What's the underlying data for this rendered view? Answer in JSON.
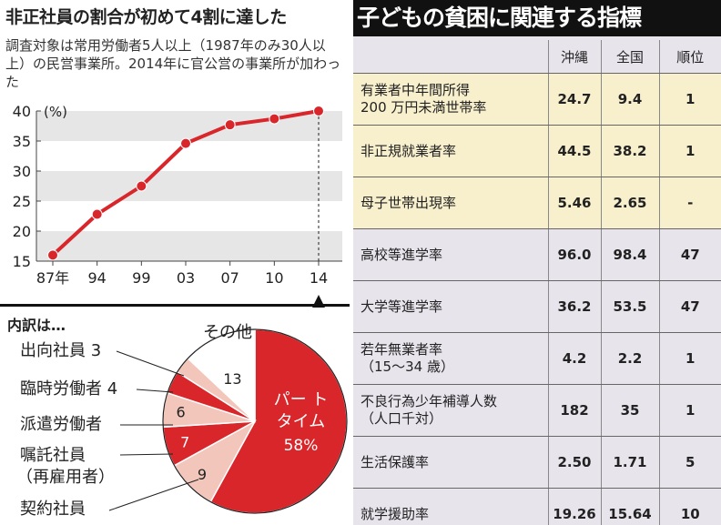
{
  "left": {
    "title": "非正社員の割合が初めて4割に達した",
    "note": "調査対象は常用労働者5人以上（1987年のみ30人以上）の民営事業所。2014年に官公営の事業所が加わった",
    "breakdown_title": "内訳は…"
  },
  "right": {
    "title": "子どもの貧困に関連する指標",
    "headers": [
      "",
      "沖縄",
      "全国",
      "順位"
    ],
    "rows": [
      {
        "label": "有業者中年間所得\n200 万円未満世帯率",
        "okinawa": "24.7",
        "national": "9.4",
        "rank": "1",
        "hl": true
      },
      {
        "label": "非正規就業者率",
        "okinawa": "44.5",
        "national": "38.2",
        "rank": "1",
        "hl": true
      },
      {
        "label": "母子世帯出現率",
        "okinawa": "5.46",
        "national": "2.65",
        "rank": "-",
        "hl": true
      },
      {
        "label": "高校等進学率",
        "okinawa": "96.0",
        "national": "98.4",
        "rank": "47",
        "hl": false
      },
      {
        "label": "大学等進学率",
        "okinawa": "36.2",
        "national": "53.5",
        "rank": "47",
        "hl": false
      },
      {
        "label": "若年無業者率\n（15～34 歳）",
        "okinawa": "4.2",
        "national": "2.2",
        "rank": "1",
        "hl": false
      },
      {
        "label": "不良行為少年補導人数\n（人口千対）",
        "okinawa": "182",
        "national": "35",
        "rank": "1",
        "hl": false
      },
      {
        "label": "生活保護率",
        "okinawa": "2.50",
        "national": "1.71",
        "rank": "5",
        "hl": false
      },
      {
        "label": "就学援助率",
        "okinawa": "19.26",
        "national": "15.64",
        "rank": "10",
        "hl": false
      }
    ]
  },
  "chart_data": [
    {
      "type": "line",
      "title": "非正社員の割合が初めて4割に達した",
      "x": [
        "87年",
        "94",
        "99",
        "03",
        "07",
        "10",
        "14"
      ],
      "series": [
        {
          "values": [
            16,
            22.8,
            27.5,
            34.6,
            37.7,
            38.7,
            40.0
          ]
        }
      ],
      "ylabel": "(%)",
      "yticks": [
        15,
        20,
        25,
        30,
        35,
        40
      ],
      "ylim": [
        15,
        40
      ],
      "color": "#d8262b"
    },
    {
      "type": "pie",
      "title": "内訳は…",
      "slices": [
        {
          "label": "パートタイム",
          "value": 58,
          "display": "58%",
          "color": "#d8262b"
        },
        {
          "label": "契約社員",
          "value": 9,
          "display": "9",
          "color": "#f3c6bb"
        },
        {
          "label": "嘱託社員（再雇用者）",
          "value": 7,
          "display": "7",
          "color": "#d8262b"
        },
        {
          "label": "派遣労働者",
          "value": 6,
          "display": "6",
          "color": "#f3c6bb"
        },
        {
          "label": "臨時労働者",
          "value": 4,
          "display": "4",
          "color": "#d8262b"
        },
        {
          "label": "出向社員",
          "value": 3,
          "display": "3",
          "color": "#f3c6bb"
        },
        {
          "label": "その他",
          "value": 13,
          "display": "13",
          "color": "#ffffff"
        }
      ]
    }
  ]
}
